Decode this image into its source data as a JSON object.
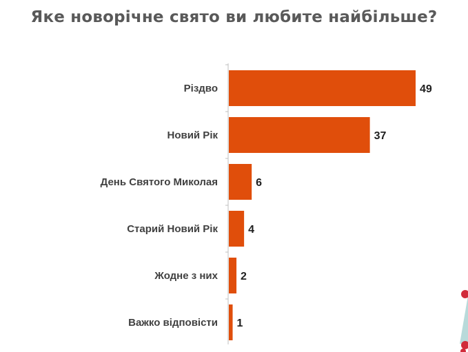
{
  "chart_data": {
    "type": "bar",
    "orientation": "horizontal",
    "title": "Яке новорічне свято ви любите найбільше?",
    "categories": [
      "Різдво",
      "Новий Рік",
      "День Святого Миколая",
      "Старий Новий Рік",
      "Жодне з них",
      "Важко відповісти"
    ],
    "values": [
      49,
      37,
      6,
      4,
      2,
      1
    ],
    "xlim": [
      0,
      55
    ],
    "grid": false,
    "legend": "none",
    "colors": {
      "bar": "#e04e0b",
      "title": "#595959",
      "axis": "#bfbfbf"
    }
  }
}
